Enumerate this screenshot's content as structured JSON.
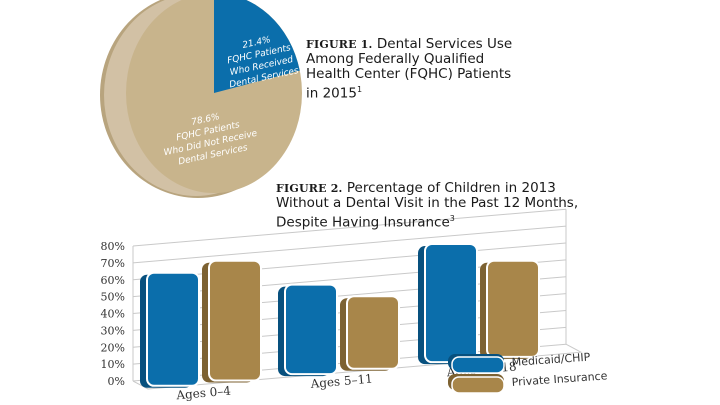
{
  "figure1": {
    "label": "FIGURE 1.",
    "title": "Dental Services Use Among Federally Qualified Health Center (FQHC) Patients in 2015",
    "footnote": "1",
    "chart_data": {
      "type": "pie",
      "title": "Dental Services Use Among Federally Qualified Health Center (FQHC) Patients in 2015",
      "slices": [
        {
          "label": "FQHC Patients Who Received Dental Services",
          "value": 21.4,
          "value_text": "21.4%",
          "lines": [
            "FQHC Patients",
            "Who Received",
            "Dental Services"
          ],
          "color": "#0b6eab"
        },
        {
          "label": "FQHC Patients Who Did Not Receive Dental Services",
          "value": 78.6,
          "value_text": "78.6%",
          "lines": [
            "FQHC Patients",
            "Who Did Not Receive",
            "Dental Services"
          ],
          "color": "#c8b48c"
        }
      ]
    }
  },
  "figure2": {
    "label": "FIGURE 2.",
    "title_lines": [
      "Percentage of Children in 2013",
      "Without a Dental Visit in the Past 12 Months,",
      "Despite Having Insurance"
    ],
    "footnote": "3",
    "chart_data": {
      "type": "bar",
      "title": "Percentage of Children in 2013 Without a Dental Visit in the Past 12 Months, Despite Having Insurance",
      "xlabel": "",
      "ylabel": "",
      "ylim": [
        0,
        80
      ],
      "yticks": [
        "0%",
        "10%",
        "20%",
        "30%",
        "40%",
        "50%",
        "60%",
        "70%",
        "80%"
      ],
      "grid": true,
      "legend": "bottom-right",
      "categories": [
        "Ages 0–4",
        "Ages 5–11",
        "Ages 12–18"
      ],
      "series": [
        {
          "name": "Medicaid/CHIP",
          "values": [
            67,
            53,
            70
          ],
          "color": "#0b6eab"
        },
        {
          "name": "Private Insurance",
          "values": [
            71,
            43,
            57
          ],
          "color": "#a8864a"
        }
      ]
    }
  }
}
